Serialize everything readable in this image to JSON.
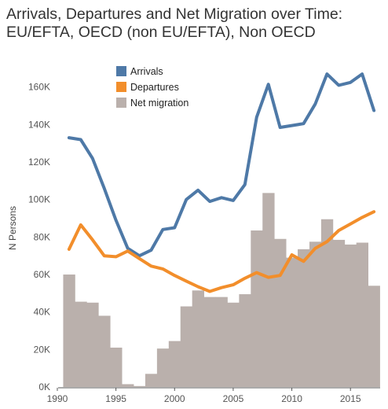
{
  "title_line1": "Arrivals, Departures and Net Migration over Time:",
  "title_line2": "EU/EFTA, OECD (non EU/EFTA), Non OECD",
  "chart_data": {
    "type": "line",
    "ylabel": "N Persons",
    "xlabel": "",
    "ylim": [
      0,
      175000
    ],
    "xlim": [
      1989.8,
      2017.8
    ],
    "y_ticks": [
      0,
      20000,
      40000,
      60000,
      80000,
      100000,
      120000,
      140000,
      160000
    ],
    "y_tick_labels": [
      "0K",
      "20K",
      "40K",
      "60K",
      "80K",
      "100K",
      "120K",
      "140K",
      "160K"
    ],
    "x_ticks": [
      1990,
      1995,
      2000,
      2005,
      2010,
      2015
    ],
    "x_tick_labels": [
      "1990",
      "1995",
      "2000",
      "2005",
      "2010",
      "2015"
    ],
    "x": [
      1991,
      1992,
      1993,
      1994,
      1995,
      1996,
      1997,
      1998,
      1999,
      2000,
      2001,
      2002,
      2003,
      2004,
      2005,
      2006,
      2007,
      2008,
      2009,
      2010,
      2011,
      2012,
      2013,
      2014,
      2015,
      2016,
      2017
    ],
    "series": [
      {
        "name": "Arrivals",
        "type": "line",
        "color": "#4e79a7",
        "values": [
          133000,
          132000,
          122000,
          106000,
          89000,
          74000,
          70000,
          73000,
          84000,
          85000,
          100000,
          105000,
          99000,
          101000,
          99500,
          108000,
          144000,
          161500,
          138500,
          139500,
          140500,
          151000,
          167000,
          161000,
          162500,
          167000,
          147500
        ]
      },
      {
        "name": "Departures",
        "type": "line",
        "color": "#f28e2b",
        "values": [
          73500,
          86500,
          78500,
          70000,
          69500,
          72500,
          68500,
          64500,
          63000,
          59500,
          56500,
          53500,
          51000,
          53000,
          54500,
          58000,
          61000,
          58500,
          59500,
          70500,
          67000,
          74000,
          77500,
          83500,
          87000,
          90500,
          93500
        ]
      },
      {
        "name": "Net migration",
        "type": "bar",
        "color": "#bab0ac",
        "values": [
          60000,
          45500,
          45000,
          38000,
          21000,
          1500,
          500,
          7000,
          20500,
          24500,
          43000,
          51500,
          48000,
          48000,
          45000,
          49500,
          83500,
          103500,
          79000,
          69000,
          73500,
          77500,
          89500,
          78500,
          76000,
          77000,
          54000
        ]
      }
    ],
    "legend_position": "top",
    "grid": false
  }
}
